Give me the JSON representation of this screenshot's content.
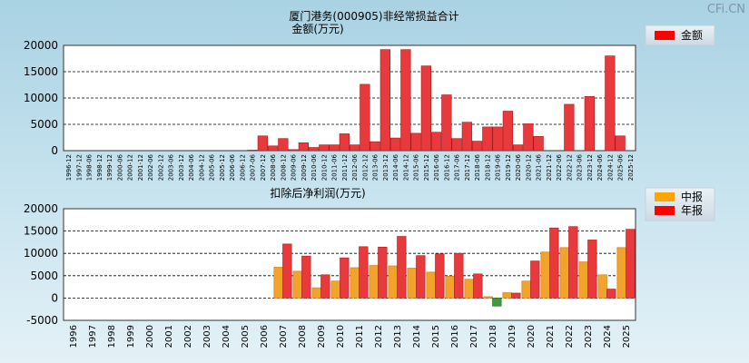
{
  "watermark": "CFi.CN",
  "chart_data": [
    {
      "type": "bar",
      "title": "厦门港务(000905)非经常损益合计",
      "ylabel": "金额(万元)",
      "ylim": [
        0,
        20000
      ],
      "yticks": [
        0,
        5000,
        10000,
        15000,
        20000
      ],
      "grid": true,
      "legend": [
        {
          "name": "金额",
          "color": "#ff0000"
        }
      ],
      "bar_color": "#e8393c",
      "categories": [
        "1996-12",
        "1997-12",
        "1998-06",
        "1998-12",
        "1999-12",
        "2000-06",
        "2000-12",
        "2001-12",
        "2002-06",
        "2002-12",
        "2003-06",
        "2003-12",
        "2004-06",
        "2004-12",
        "2005-06",
        "2005-12",
        "2006-06",
        "2006-12",
        "2007-06",
        "2007-12",
        "2008-06",
        "2008-12",
        "2009-06",
        "2009-12",
        "2010-06",
        "2010-12",
        "2011-06",
        "2011-12",
        "2012-06",
        "2012-12",
        "2013-06",
        "2013-12",
        "2014-06",
        "2014-12",
        "2015-06",
        "2015-12",
        "2016-06",
        "2016-12",
        "2017-06",
        "2017-12",
        "2018-06",
        "2018-12",
        "2019-06",
        "2019-12",
        "2020-06",
        "2020-12",
        "2021-06",
        "2021-12",
        "2022-06",
        "2022-12",
        "2023-06",
        "2023-12",
        "2024-06",
        "2024-12",
        "2025-06",
        "2025-12"
      ],
      "values": [
        0,
        0,
        0,
        0,
        0,
        0,
        0,
        0,
        0,
        0,
        0,
        0,
        0,
        0,
        0,
        0,
        0,
        0,
        100,
        2800,
        900,
        2300,
        200,
        1500,
        600,
        1100,
        1100,
        3200,
        1100,
        12600,
        1700,
        19200,
        2400,
        19200,
        3300,
        16100,
        3500,
        10600,
        2300,
        5400,
        1800,
        4500,
        4500,
        7500,
        1100,
        5100,
        2700,
        0,
        0,
        8800,
        0,
        10300,
        0,
        18000,
        2800,
        0
      ]
    },
    {
      "type": "bar",
      "title": "扣除后净利润(万元)",
      "ylim": [
        -5000,
        20000
      ],
      "yticks": [
        -5000,
        0,
        5000,
        10000,
        15000,
        20000
      ],
      "grid": true,
      "legend": [
        {
          "name": "中报",
          "color": "#ffa500"
        },
        {
          "name": "年报",
          "color": "#ff0000"
        }
      ],
      "categories": [
        "1996",
        "1997",
        "1998",
        "1999",
        "2000",
        "2001",
        "2002",
        "2003",
        "2004",
        "2005",
        "2006",
        "2007",
        "2008",
        "2009",
        "2010",
        "2011",
        "2012",
        "2013",
        "2014",
        "2015",
        "2016",
        "2017",
        "2018",
        "2019",
        "2020",
        "2021",
        "2022",
        "2023",
        "2024",
        "2025"
      ],
      "series": [
        {
          "name": "中报",
          "color": "#f2a32a",
          "values": [
            0,
            0,
            0,
            0,
            0,
            0,
            0,
            0,
            0,
            0,
            0,
            6900,
            6000,
            2300,
            3800,
            6800,
            7300,
            7200,
            6700,
            5800,
            4900,
            4200,
            300,
            1200,
            3800,
            10300,
            11300,
            8100,
            5200,
            11300
          ]
        },
        {
          "name": "年报",
          "color": "#e8393c",
          "values": [
            0,
            0,
            0,
            0,
            0,
            0,
            0,
            0,
            0,
            0,
            0,
            12100,
            9400,
            5200,
            9000,
            11500,
            11400,
            13800,
            9500,
            9900,
            10000,
            5400,
            -1800,
            1100,
            8300,
            15700,
            16000,
            13000,
            2000,
            15400
          ]
        }
      ]
    }
  ]
}
